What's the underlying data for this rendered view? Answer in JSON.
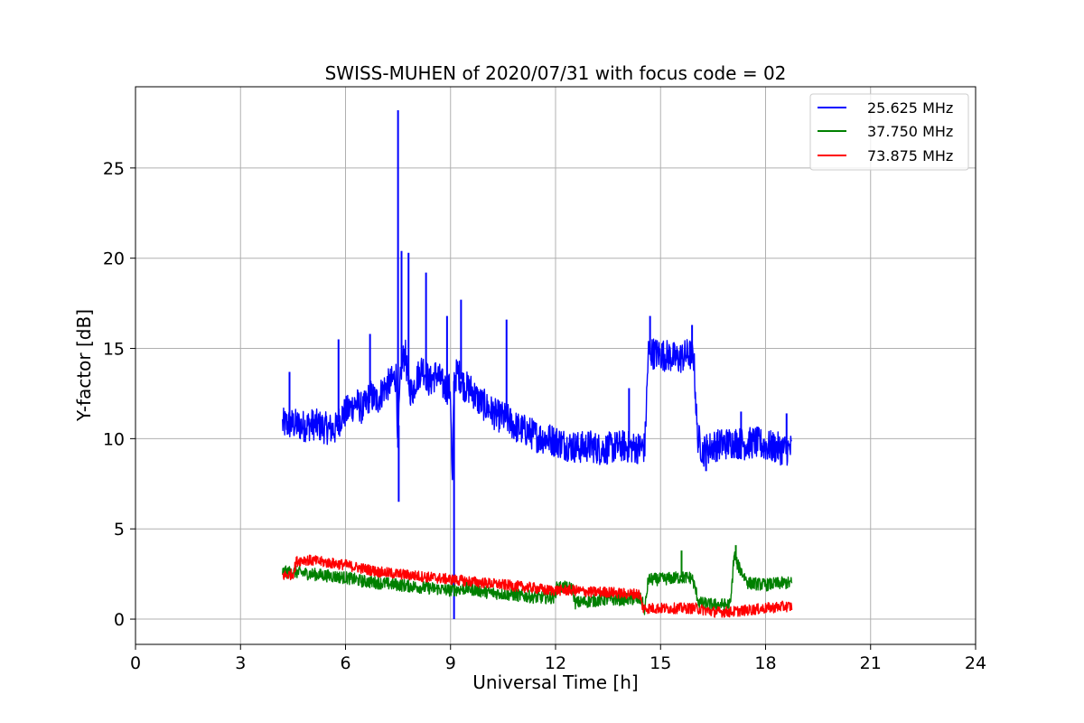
{
  "chart_data": {
    "type": "line",
    "title": "SWISS-MUHEN of 2020/07/31 with focus code = 02",
    "xlabel": "Universal Time [h]",
    "ylabel": "Y-factor [dB]",
    "xlim": [
      0,
      24
    ],
    "ylim": [
      -1.4,
      29.5
    ],
    "xticks": [
      0,
      3,
      6,
      9,
      12,
      15,
      18,
      21,
      24
    ],
    "yticks": [
      0,
      5,
      10,
      15,
      20,
      25
    ],
    "grid": true,
    "legend_position": "top-right",
    "series": [
      {
        "name": "25.625 MHz",
        "color": "#0000ff",
        "x": [
          4.2,
          4.5,
          4.8,
          5.1,
          5.4,
          5.7,
          5.9,
          6.1,
          6.3,
          6.5,
          6.7,
          6.9,
          7.1,
          7.3,
          7.45,
          7.5,
          7.55,
          7.6,
          7.7,
          7.8,
          7.9,
          8.0,
          8.2,
          8.4,
          8.6,
          8.8,
          9.0,
          9.05,
          9.1,
          9.2,
          9.4,
          9.6,
          9.8,
          10.0,
          10.3,
          10.6,
          10.9,
          11.2,
          11.5,
          11.8,
          12.1,
          12.4,
          12.7,
          13.0,
          13.3,
          13.6,
          13.9,
          14.2,
          14.55,
          14.65,
          14.9,
          15.2,
          15.5,
          15.8,
          15.95,
          16.05,
          16.2,
          16.5,
          16.8,
          17.1,
          17.4,
          17.7,
          18.0,
          18.3,
          18.5,
          18.75
        ],
        "y": [
          10.8,
          10.8,
          10.7,
          10.8,
          10.6,
          10.5,
          11.3,
          11.6,
          12.0,
          11.6,
          12.4,
          12.1,
          12.8,
          13.1,
          13.5,
          9.5,
          12.6,
          14.0,
          14.8,
          13.0,
          12.5,
          13.2,
          14.0,
          13.1,
          13.6,
          12.9,
          12.7,
          7.0,
          13.2,
          13.7,
          12.9,
          12.7,
          12.1,
          11.8,
          11.3,
          11.1,
          10.6,
          10.4,
          10.1,
          10.0,
          9.8,
          9.6,
          9.5,
          9.6,
          9.4,
          9.5,
          9.6,
          9.5,
          9.5,
          14.8,
          14.7,
          14.6,
          14.4,
          14.7,
          14.5,
          10.2,
          9.3,
          9.6,
          9.7,
          9.8,
          9.7,
          9.8,
          9.6,
          9.5,
          9.4,
          9.4
        ],
        "spikes": [
          {
            "x": 4.4,
            "y": 13.7
          },
          {
            "x": 5.8,
            "y": 15.5
          },
          {
            "x": 6.7,
            "y": 15.8
          },
          {
            "x": 7.5,
            "y": 28.2
          },
          {
            "x": 7.52,
            "y": 6.5
          },
          {
            "x": 7.6,
            "y": 20.4
          },
          {
            "x": 7.8,
            "y": 20.3
          },
          {
            "x": 8.3,
            "y": 19.2
          },
          {
            "x": 8.9,
            "y": 16.8
          },
          {
            "x": 9.1,
            "y": 0.0
          },
          {
            "x": 9.3,
            "y": 17.7
          },
          {
            "x": 10.6,
            "y": 16.6
          },
          {
            "x": 14.1,
            "y": 12.8
          },
          {
            "x": 14.7,
            "y": 16.8
          },
          {
            "x": 15.9,
            "y": 16.3
          },
          {
            "x": 16.3,
            "y": 8.2
          },
          {
            "x": 17.3,
            "y": 11.5
          },
          {
            "x": 18.6,
            "y": 11.4
          }
        ]
      },
      {
        "name": "37.750 MHz",
        "color": "#008000",
        "x": [
          4.2,
          4.6,
          5.0,
          5.5,
          6.0,
          6.5,
          7.0,
          7.5,
          8.0,
          8.5,
          9.0,
          9.5,
          10.0,
          10.5,
          11.0,
          11.5,
          11.95,
          12.05,
          12.5,
          12.55,
          13.0,
          13.5,
          14.0,
          14.45,
          14.55,
          14.65,
          15.0,
          15.5,
          15.9,
          16.1,
          16.5,
          17.0,
          17.1,
          17.2,
          17.5,
          18.0,
          18.5,
          18.75
        ],
        "y": [
          2.6,
          2.6,
          2.5,
          2.4,
          2.3,
          2.1,
          2.0,
          1.9,
          1.8,
          1.7,
          1.6,
          1.7,
          1.5,
          1.4,
          1.3,
          1.2,
          1.2,
          1.8,
          1.7,
          0.9,
          1.0,
          1.1,
          1.1,
          1.1,
          0.5,
          2.2,
          2.2,
          2.3,
          2.3,
          0.9,
          0.8,
          0.8,
          3.6,
          3.0,
          2.0,
          1.9,
          2.0,
          2.0
        ],
        "spikes": [
          {
            "x": 15.6,
            "y": 3.8
          },
          {
            "x": 17.15,
            "y": 4.1
          }
        ]
      },
      {
        "name": "73.875 MHz",
        "color": "#ff0000",
        "x": [
          4.2,
          4.5,
          4.6,
          4.8,
          5.2,
          5.6,
          6.0,
          6.5,
          7.0,
          7.5,
          8.0,
          8.5,
          9.0,
          9.5,
          10.0,
          10.5,
          11.0,
          11.5,
          11.7,
          12.0,
          12.5,
          13.0,
          13.5,
          14.0,
          14.4,
          14.5,
          15.0,
          15.5,
          16.0,
          16.5,
          17.0,
          17.5,
          18.0,
          18.5,
          18.75
        ],
        "y": [
          2.4,
          2.5,
          3.2,
          3.3,
          3.2,
          3.1,
          3.0,
          2.8,
          2.6,
          2.5,
          2.4,
          2.3,
          2.2,
          2.1,
          2.0,
          1.9,
          1.8,
          1.7,
          1.6,
          1.6,
          1.6,
          1.5,
          1.5,
          1.4,
          1.4,
          0.6,
          0.6,
          0.6,
          0.6,
          0.4,
          0.4,
          0.5,
          0.6,
          0.7,
          0.7
        ]
      }
    ]
  }
}
